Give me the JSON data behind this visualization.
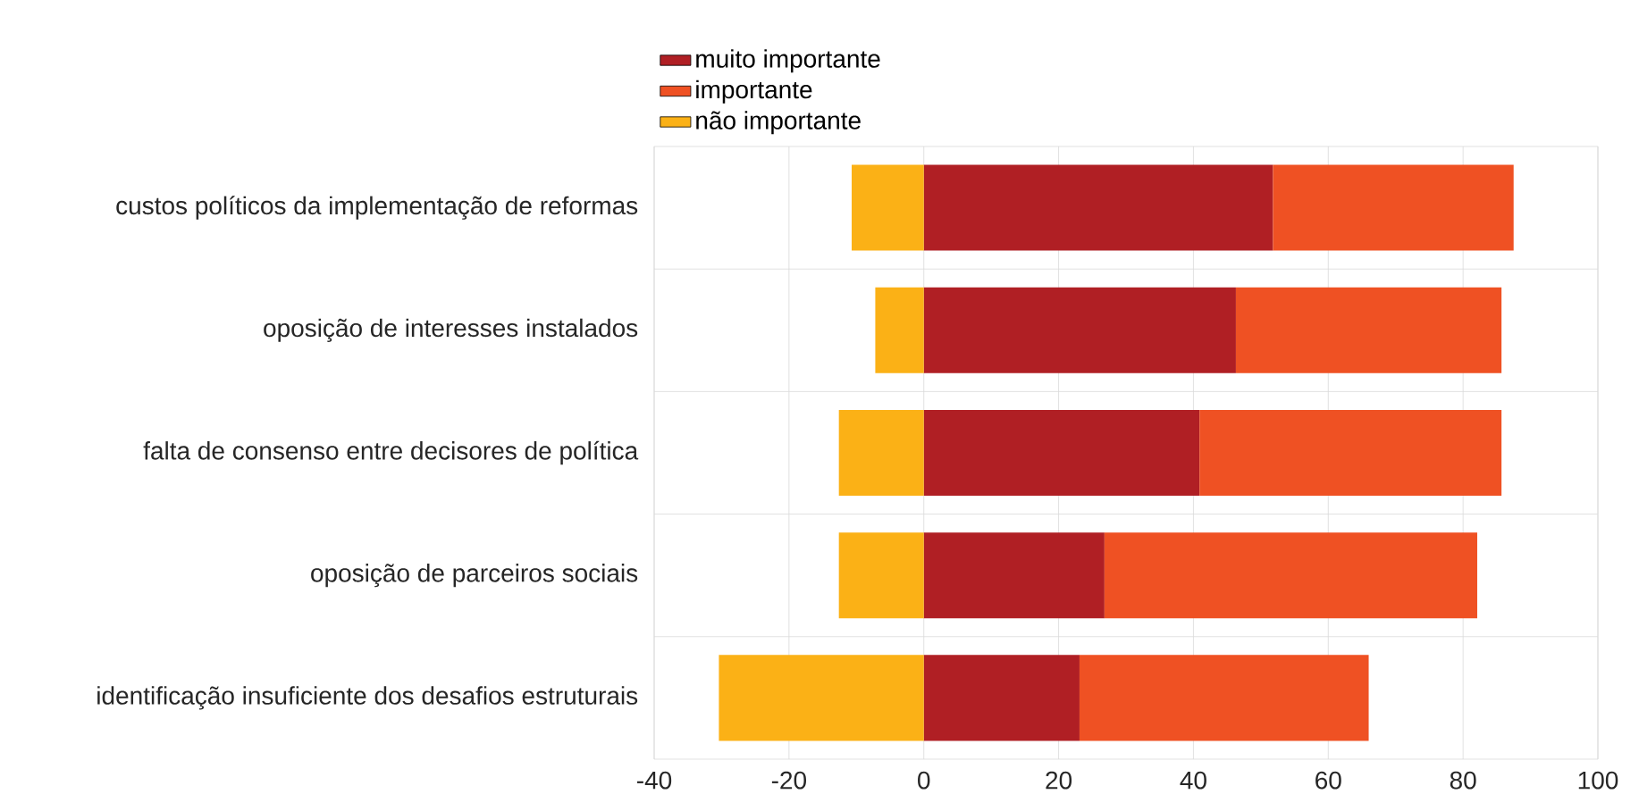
{
  "chart_data": {
    "type": "bar",
    "orientation": "horizontal",
    "stacked": true,
    "categories": [
      "custos políticos da implementação de reformas",
      "oposição de interesses instalados",
      "falta de consenso entre decisores de política",
      "oposição de parceiros sociais",
      "identificação insuficiente dos desafios estruturais"
    ],
    "series": [
      {
        "name": "muito importante",
        "color": "#b01f24",
        "values": [
          51.8,
          46.3,
          40.9,
          26.8,
          23.1
        ]
      },
      {
        "name": "importante",
        "color": "#ef5123",
        "values": [
          35.7,
          39.4,
          44.8,
          55.3,
          42.9
        ]
      },
      {
        "name": "não importante",
        "color": "#fbb116",
        "values": [
          -10.7,
          -7.2,
          -12.6,
          -12.6,
          -30.4
        ]
      }
    ],
    "xlim": [
      -40,
      100
    ],
    "xticks": [
      -40,
      -20,
      0,
      20,
      40,
      60,
      80,
      100
    ],
    "grid": true,
    "legend": "top"
  }
}
